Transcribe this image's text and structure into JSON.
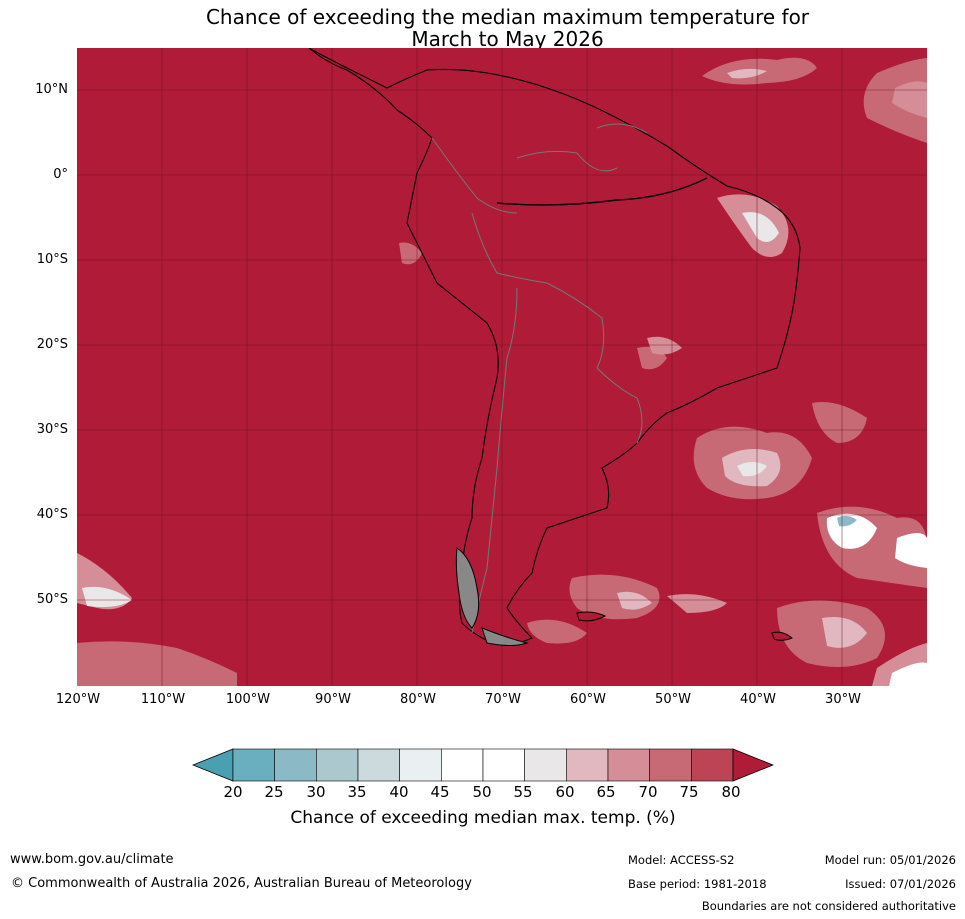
{
  "title": {
    "line1": "Chance of exceeding the median maximum temperature for",
    "line2": "March to May 2026"
  },
  "map": {
    "lat_labels": [
      "10°N",
      "0°",
      "10°S",
      "20°S",
      "30°S",
      "40°S",
      "50°S"
    ],
    "lon_labels": [
      "120°W",
      "110°W",
      "100°W",
      "90°W",
      "80°W",
      "70°W",
      "60°W",
      "50°W",
      "40°W",
      "30°W"
    ],
    "dominant_color": "#b01b37",
    "features": [
      "South America",
      "country boundaries",
      "ocean probability anomalies"
    ]
  },
  "colorbar": {
    "ticks": [
      "20",
      "25",
      "30",
      "35",
      "40",
      "45",
      "50",
      "55",
      "60",
      "65",
      "70",
      "75",
      "80"
    ],
    "colors": [
      "#4a9fb0",
      "#6aafbf",
      "#8bbac6",
      "#abc8ce",
      "#ccdadd",
      "#eaf0f2",
      "#ffffff",
      "#ffffff",
      "#e9e7e8",
      "#e1b8c0",
      "#d58d98",
      "#c86a76",
      "#bd4454",
      "#b01b37"
    ],
    "label": "Chance of exceeding median max. temp. (%)"
  },
  "footer": {
    "url": "www.bom.gov.au/climate",
    "copyright": "© Commonwealth of Australia 2026, Australian Bureau of Meteorology",
    "model": "Model: ACCESS-S2",
    "base_period": "Base period: 1981-2018",
    "model_run": "Model run: 05/01/2026",
    "issued": "Issued: 07/01/2026",
    "disclaimer": "Boundaries are not considered authoritative"
  }
}
